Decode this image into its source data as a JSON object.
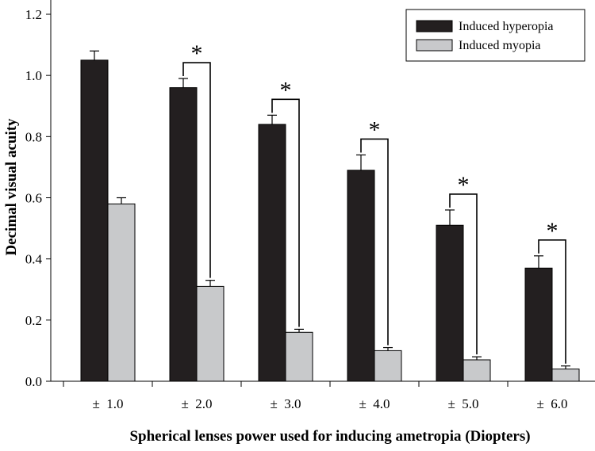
{
  "chart_data": {
    "type": "bar",
    "title": "",
    "xlabel": "Spherical lenses power used for inducing ametropia (Diopters)",
    "ylabel": "Decimal visual acuity",
    "ylim": [
      0,
      1.2
    ],
    "yticks": [
      "0.0",
      "0.2",
      "0.4",
      "0.6",
      "0.8",
      "1.0",
      "1.2"
    ],
    "categories": [
      "±  1.0",
      "±  2.0",
      "±  3.0",
      "±  4.0",
      "±  5.0",
      "±  6.0"
    ],
    "series": [
      {
        "name": "Induced hyperopia",
        "color": "#231f20",
        "values": [
          1.05,
          0.96,
          0.84,
          0.69,
          0.51,
          0.37
        ],
        "errors": [
          0.03,
          0.03,
          0.03,
          0.05,
          0.05,
          0.04
        ]
      },
      {
        "name": "Induced myopia",
        "color": "#c8c9cb",
        "values": [
          0.58,
          0.31,
          0.16,
          0.1,
          0.07,
          0.04
        ],
        "errors": [
          0.02,
          0.02,
          0.01,
          0.01,
          0.01,
          0.01
        ]
      }
    ],
    "significance": {
      "marker": "*",
      "categories": [
        "±  2.0",
        "±  3.0",
        "±  4.0",
        "±  5.0",
        "±  6.0"
      ]
    },
    "legend_position": "top-right",
    "grid": false
  }
}
